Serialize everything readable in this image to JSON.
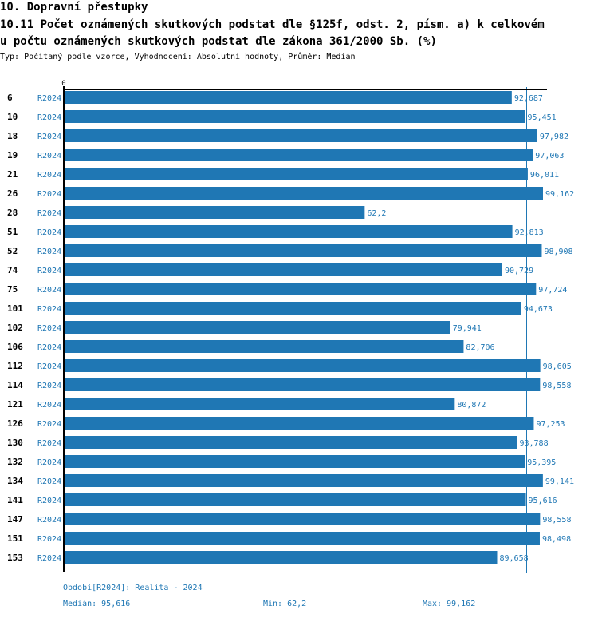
{
  "header": {
    "section_title": "10. Dopravní přestupky",
    "chart_title_line1": "10.11 Počet oznámených skutkových podstat dle §125f, odst. 2, písm. a) k celkovém",
    "chart_title_line2": "u počtu oznámených skutkových podstat dle zákona 361/2000 Sb. (%)",
    "subtitle": "Typ: Počítaný podle vzorce, Vyhodnocení: Absolutní hodnoty, Průměr: Medián"
  },
  "colors": {
    "bar": "#1f77b4",
    "text_accent": "#1f77b4",
    "axis": "#000000"
  },
  "chart_data": {
    "type": "bar",
    "orientation": "horizontal",
    "title": "10.11 Počet oznámených skutkových podstat dle §125f, odst. 2, písm. a) k celkovému počtu oznámených skutkových podstat dle zákona 361/2000 Sb. (%)",
    "xlabel": "",
    "ylabel": "",
    "axis_zero_label": "0",
    "xlim": [
      0,
      99.162
    ],
    "median_line": 95.616,
    "series_label": "R2024",
    "categories": [
      "6",
      "10",
      "18",
      "19",
      "21",
      "26",
      "28",
      "51",
      "52",
      "74",
      "75",
      "101",
      "102",
      "106",
      "112",
      "114",
      "121",
      "126",
      "130",
      "132",
      "134",
      "141",
      "147",
      "151",
      "153"
    ],
    "values": [
      92.687,
      95.451,
      97.982,
      97.063,
      96.011,
      99.162,
      62.2,
      92.813,
      98.908,
      90.729,
      97.724,
      94.673,
      79.941,
      82.706,
      98.605,
      98.558,
      80.872,
      97.253,
      93.788,
      95.395,
      99.141,
      95.616,
      98.558,
      98.498,
      89.658
    ],
    "value_labels": [
      "92,687",
      "95,451",
      "97,982",
      "97,063",
      "96,011",
      "99,162",
      "62,2",
      "92,813",
      "98,908",
      "90,729",
      "97,724",
      "94,673",
      "79,941",
      "82,706",
      "98,605",
      "98,558",
      "80,872",
      "97,253",
      "93,788",
      "95,395",
      "99,141",
      "95,616",
      "98,558",
      "98,498",
      "89,658"
    ]
  },
  "footer": {
    "period": "Období[R2024]: Realita - 2024",
    "median": "Medián: 95,616",
    "min": "Min: 62,2",
    "max": "Max: 99,162"
  }
}
